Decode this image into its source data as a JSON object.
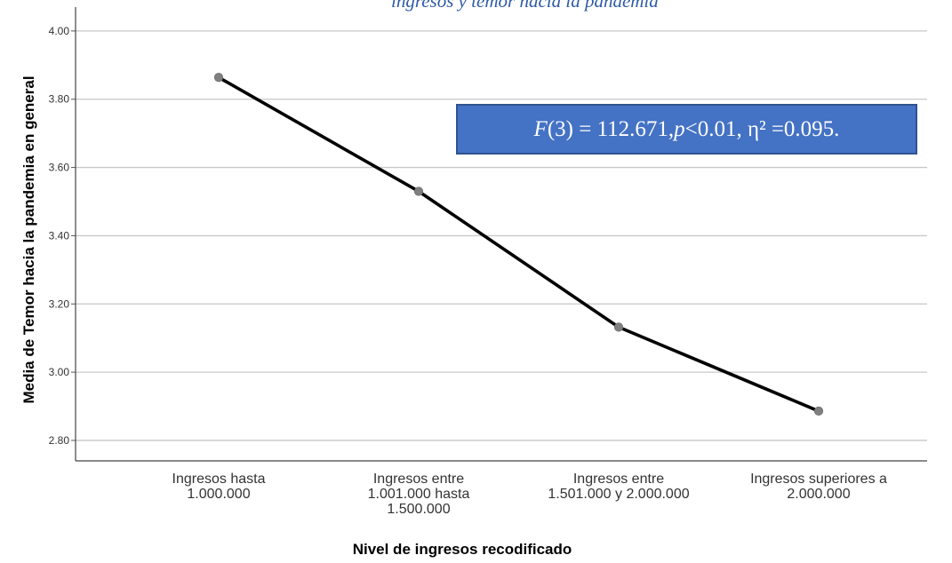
{
  "chart_data": {
    "type": "line",
    "title": "ingresos y temor hacia la pandemia",
    "xlabel": "Nivel de ingresos recodificado",
    "ylabel": "Media de Temor hacia la pandemia en general",
    "categories": [
      "Ingresos hasta\n1.000.000",
      "Ingresos entre\n1.001.000 hasta\n1.500.000",
      "Ingresos entre\n1.501.000 y 2.000.000",
      "Ingresos superiores a\n2.000.000"
    ],
    "series": [
      {
        "values": [
          3.864,
          3.53,
          3.132,
          2.886
        ]
      }
    ],
    "ylim": [
      2.74,
      4.07
    ],
    "yticks": [
      2.8,
      3.0,
      3.2,
      3.4,
      3.6,
      3.8,
      4.0
    ],
    "ytick_labels": [
      "2.80",
      "3.00",
      "3.20",
      "3.40",
      "3.60",
      "3.80",
      "4.00"
    ],
    "grid": true,
    "annotation": {
      "f_label": "F",
      "f_value": " (3) = 112.671, ",
      "p_label": "p",
      "rest": " <0.01, η² =0.095."
    },
    "colors": {
      "line": "#000000",
      "marker": "#7f7f7f",
      "grid": "#c8c8c8",
      "annotation_bg": "#4472c4",
      "title": "#2e5aa6"
    }
  }
}
